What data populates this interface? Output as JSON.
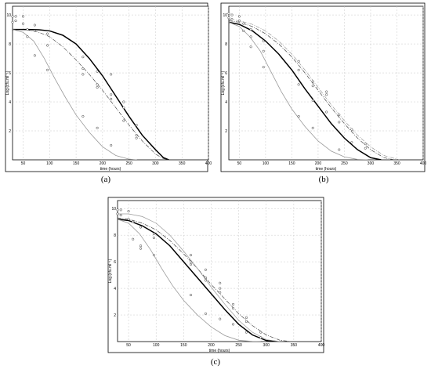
{
  "chart_data": [
    {
      "type": "line",
      "panel_label": "(a)",
      "xlabel": "time (hours)",
      "ylabel": "Log (cfu.ml⁻¹)",
      "xlim": [
        30,
        400
      ],
      "ylim": [
        0,
        10.6
      ],
      "xticks": [
        50,
        100,
        150,
        200,
        250,
        300,
        350,
        400
      ],
      "yticks": [
        2,
        4,
        6,
        8,
        10
      ],
      "grid": true,
      "series": [
        {
          "color": "#000000",
          "style": "solid",
          "width": 1.5,
          "x": [
            30,
            60,
            80,
            100,
            125,
            150,
            175,
            200,
            225,
            250,
            275,
            300,
            315,
            325
          ],
          "y": [
            9.0,
            9.0,
            8.98,
            8.9,
            8.6,
            8.0,
            7.0,
            5.8,
            4.4,
            3.0,
            1.7,
            0.7,
            0.15,
            0
          ]
        },
        {
          "color": "#333333",
          "style": "dashdot",
          "width": 0.6,
          "x": [
            30,
            60,
            80,
            100,
            125,
            150,
            175,
            200,
            225,
            250,
            275,
            300,
            315,
            325
          ],
          "y": [
            9.0,
            8.95,
            8.8,
            8.5,
            7.8,
            6.9,
            5.9,
            4.8,
            3.6,
            2.4,
            1.3,
            0.4,
            0.08,
            0
          ]
        },
        {
          "color": "#999999",
          "style": "solid",
          "width": 0.8,
          "x": [
            30,
            50,
            70,
            90,
            110,
            130,
            150,
            175,
            200,
            225,
            250,
            265
          ],
          "y": [
            9.0,
            8.8,
            8.2,
            7.0,
            5.6,
            4.3,
            3.1,
            1.9,
            0.9,
            0.3,
            0.05,
            0
          ]
        }
      ],
      "points": [
        {
          "x": 30,
          "y": 9.9
        },
        {
          "x": 30,
          "y": 9.5
        },
        {
          "x": 36,
          "y": 9.9
        },
        {
          "x": 36,
          "y": 9.6
        },
        {
          "x": 50,
          "y": 9.9
        },
        {
          "x": 50,
          "y": 9.4
        },
        {
          "x": 58,
          "y": 9.0
        },
        {
          "x": 58,
          "y": 8.5
        },
        {
          "x": 72,
          "y": 9.3
        },
        {
          "x": 72,
          "y": 8.9
        },
        {
          "x": 72,
          "y": 7.2
        },
        {
          "x": 96,
          "y": 8.7
        },
        {
          "x": 96,
          "y": 7.9
        },
        {
          "x": 96,
          "y": 6.2
        },
        {
          "x": 163,
          "y": 7.1
        },
        {
          "x": 163,
          "y": 6.3
        },
        {
          "x": 163,
          "y": 5.9
        },
        {
          "x": 163,
          "y": 3.0
        },
        {
          "x": 190,
          "y": 6.1
        },
        {
          "x": 190,
          "y": 5.2
        },
        {
          "x": 190,
          "y": 5.0
        },
        {
          "x": 190,
          "y": 2.2
        },
        {
          "x": 216,
          "y": 5.9
        },
        {
          "x": 216,
          "y": 4.5
        },
        {
          "x": 216,
          "y": 4.2
        },
        {
          "x": 216,
          "y": 1.0
        },
        {
          "x": 240,
          "y": 4.0
        },
        {
          "x": 240,
          "y": 3.6
        },
        {
          "x": 240,
          "y": 2.7
        },
        {
          "x": 264,
          "y": 2.4
        },
        {
          "x": 264,
          "y": 1.7
        },
        {
          "x": 264,
          "y": 1.5
        }
      ]
    },
    {
      "type": "line",
      "panel_label": "(b)",
      "xlabel": "time (hours)",
      "ylabel": "Log (cfu.ml⁻¹)",
      "xlim": [
        30,
        400
      ],
      "ylim": [
        0,
        10.6
      ],
      "xticks": [
        50,
        100,
        150,
        200,
        250,
        300,
        350,
        400
      ],
      "yticks": [
        2,
        4,
        6,
        8,
        10
      ],
      "grid": true,
      "series": [
        {
          "color": "#000000",
          "style": "solid",
          "width": 1.5,
          "x": [
            30,
            50,
            75,
            100,
            125,
            150,
            175,
            200,
            225,
            250,
            275,
            300,
            320
          ],
          "y": [
            9.5,
            9.35,
            8.9,
            8.2,
            7.3,
            6.2,
            4.9,
            3.7,
            2.5,
            1.5,
            0.7,
            0.15,
            0
          ]
        },
        {
          "color": "#444444",
          "style": "dashdot",
          "width": 0.7,
          "x": [
            30,
            50,
            75,
            100,
            125,
            150,
            175,
            200,
            225,
            250,
            275,
            300,
            325,
            345
          ],
          "y": [
            9.6,
            9.5,
            9.2,
            8.7,
            8.0,
            7.1,
            6.0,
            4.8,
            3.6,
            2.5,
            1.5,
            0.7,
            0.15,
            0
          ]
        },
        {
          "color": "#888888",
          "style": "dashdot",
          "width": 0.6,
          "x": [
            30,
            50,
            75,
            100,
            125,
            150,
            175,
            200,
            225,
            250,
            275,
            300,
            325,
            355
          ],
          "y": [
            9.7,
            9.6,
            9.35,
            8.9,
            8.2,
            7.3,
            6.2,
            5.0,
            3.8,
            2.7,
            1.7,
            0.9,
            0.3,
            0
          ]
        },
        {
          "color": "#999999",
          "style": "solid",
          "width": 0.8,
          "x": [
            30,
            50,
            70,
            90,
            110,
            130,
            150,
            175,
            200,
            225,
            250,
            275,
            295
          ],
          "y": [
            9.5,
            9.2,
            8.5,
            7.5,
            6.1,
            4.7,
            3.5,
            2.3,
            1.3,
            0.6,
            0.2,
            0.03,
            0
          ]
        }
      ],
      "points": [
        {
          "x": 30,
          "y": 10.1
        },
        {
          "x": 30,
          "y": 9.8
        },
        {
          "x": 36,
          "y": 10.0
        },
        {
          "x": 36,
          "y": 9.7
        },
        {
          "x": 50,
          "y": 9.9
        },
        {
          "x": 50,
          "y": 9.6
        },
        {
          "x": 58,
          "y": 9.4
        },
        {
          "x": 58,
          "y": 8.9
        },
        {
          "x": 72,
          "y": 9.0
        },
        {
          "x": 72,
          "y": 8.5
        },
        {
          "x": 72,
          "y": 7.8
        },
        {
          "x": 96,
          "y": 8.2
        },
        {
          "x": 96,
          "y": 7.5
        },
        {
          "x": 96,
          "y": 6.4
        },
        {
          "x": 163,
          "y": 6.8
        },
        {
          "x": 163,
          "y": 6.2
        },
        {
          "x": 163,
          "y": 5.2
        },
        {
          "x": 163,
          "y": 3.0
        },
        {
          "x": 190,
          "y": 5.4
        },
        {
          "x": 190,
          "y": 5.1
        },
        {
          "x": 190,
          "y": 4.1
        },
        {
          "x": 190,
          "y": 2.2
        },
        {
          "x": 216,
          "y": 4.7
        },
        {
          "x": 216,
          "y": 4.5
        },
        {
          "x": 216,
          "y": 3.3
        },
        {
          "x": 240,
          "y": 3.1
        },
        {
          "x": 240,
          "y": 2.6
        },
        {
          "x": 240,
          "y": 0.7
        },
        {
          "x": 264,
          "y": 2.1
        },
        {
          "x": 264,
          "y": 1.2
        },
        {
          "x": 290,
          "y": 1.1
        },
        {
          "x": 290,
          "y": 0.8
        }
      ]
    },
    {
      "type": "line",
      "panel_label": "(c)",
      "xlabel": "time (hours)",
      "ylabel": "Log (cfu.ml⁻¹)",
      "xlim": [
        30,
        400
      ],
      "ylim": [
        0,
        10.6
      ],
      "xticks": [
        50,
        100,
        150,
        200,
        250,
        300,
        350,
        400
      ],
      "yticks": [
        2,
        4,
        6,
        8,
        10
      ],
      "grid": true,
      "series": [
        {
          "color": "#000000",
          "style": "solid",
          "width": 1.5,
          "x": [
            30,
            50,
            75,
            100,
            125,
            150,
            175,
            200,
            225,
            250,
            275,
            300,
            320
          ],
          "y": [
            9.2,
            9.1,
            8.7,
            8.1,
            7.2,
            6.0,
            4.8,
            3.6,
            2.4,
            1.3,
            0.5,
            0.08,
            0
          ]
        },
        {
          "color": "#444444",
          "style": "dashdot",
          "width": 0.7,
          "x": [
            30,
            50,
            75,
            100,
            125,
            150,
            175,
            200,
            225,
            250,
            275,
            300,
            325,
            345
          ],
          "y": [
            9.3,
            9.2,
            8.9,
            8.4,
            7.6,
            6.6,
            5.5,
            4.3,
            3.2,
            2.1,
            1.2,
            0.5,
            0.1,
            0
          ]
        },
        {
          "color": "#999999",
          "style": "solid",
          "width": 0.7,
          "x": [
            30,
            50,
            75,
            100,
            125,
            150,
            175,
            200,
            225,
            250,
            275,
            300,
            325
          ],
          "y": [
            9.6,
            9.6,
            9.4,
            8.9,
            8.0,
            6.8,
            5.5,
            4.1,
            2.8,
            1.6,
            0.7,
            0.15,
            0
          ]
        },
        {
          "color": "#999999",
          "style": "solid",
          "width": 0.8,
          "x": [
            30,
            50,
            70,
            90,
            110,
            130,
            150,
            175,
            200,
            225,
            250,
            275,
            290
          ],
          "y": [
            9.2,
            8.9,
            8.1,
            6.9,
            5.5,
            4.2,
            3.1,
            2.0,
            1.1,
            0.45,
            0.1,
            0.01,
            0
          ]
        }
      ],
      "points": [
        {
          "x": 30,
          "y": 9.9
        },
        {
          "x": 30,
          "y": 9.6
        },
        {
          "x": 36,
          "y": 9.9
        },
        {
          "x": 36,
          "y": 9.5
        },
        {
          "x": 50,
          "y": 9.8
        },
        {
          "x": 50,
          "y": 9.2
        },
        {
          "x": 58,
          "y": 9.0
        },
        {
          "x": 58,
          "y": 7.7
        },
        {
          "x": 72,
          "y": 8.6
        },
        {
          "x": 72,
          "y": 7.2
        },
        {
          "x": 72,
          "y": 7.0
        },
        {
          "x": 96,
          "y": 8.1
        },
        {
          "x": 96,
          "y": 7.8
        },
        {
          "x": 96,
          "y": 6.5
        },
        {
          "x": 163,
          "y": 6.5
        },
        {
          "x": 163,
          "y": 6.0
        },
        {
          "x": 163,
          "y": 5.8
        },
        {
          "x": 163,
          "y": 3.5
        },
        {
          "x": 190,
          "y": 5.4
        },
        {
          "x": 190,
          "y": 4.8
        },
        {
          "x": 190,
          "y": 4.6
        },
        {
          "x": 190,
          "y": 2.1
        },
        {
          "x": 216,
          "y": 4.4
        },
        {
          "x": 216,
          "y": 4.0
        },
        {
          "x": 216,
          "y": 3.7
        },
        {
          "x": 216,
          "y": 1.7
        },
        {
          "x": 240,
          "y": 2.8
        },
        {
          "x": 240,
          "y": 2.5
        },
        {
          "x": 240,
          "y": 1.3
        },
        {
          "x": 264,
          "y": 1.8
        },
        {
          "x": 264,
          "y": 1.5
        },
        {
          "x": 264,
          "y": 0.7
        },
        {
          "x": 290,
          "y": 0.7
        },
        {
          "x": 290,
          "y": 0.3
        }
      ]
    }
  ]
}
